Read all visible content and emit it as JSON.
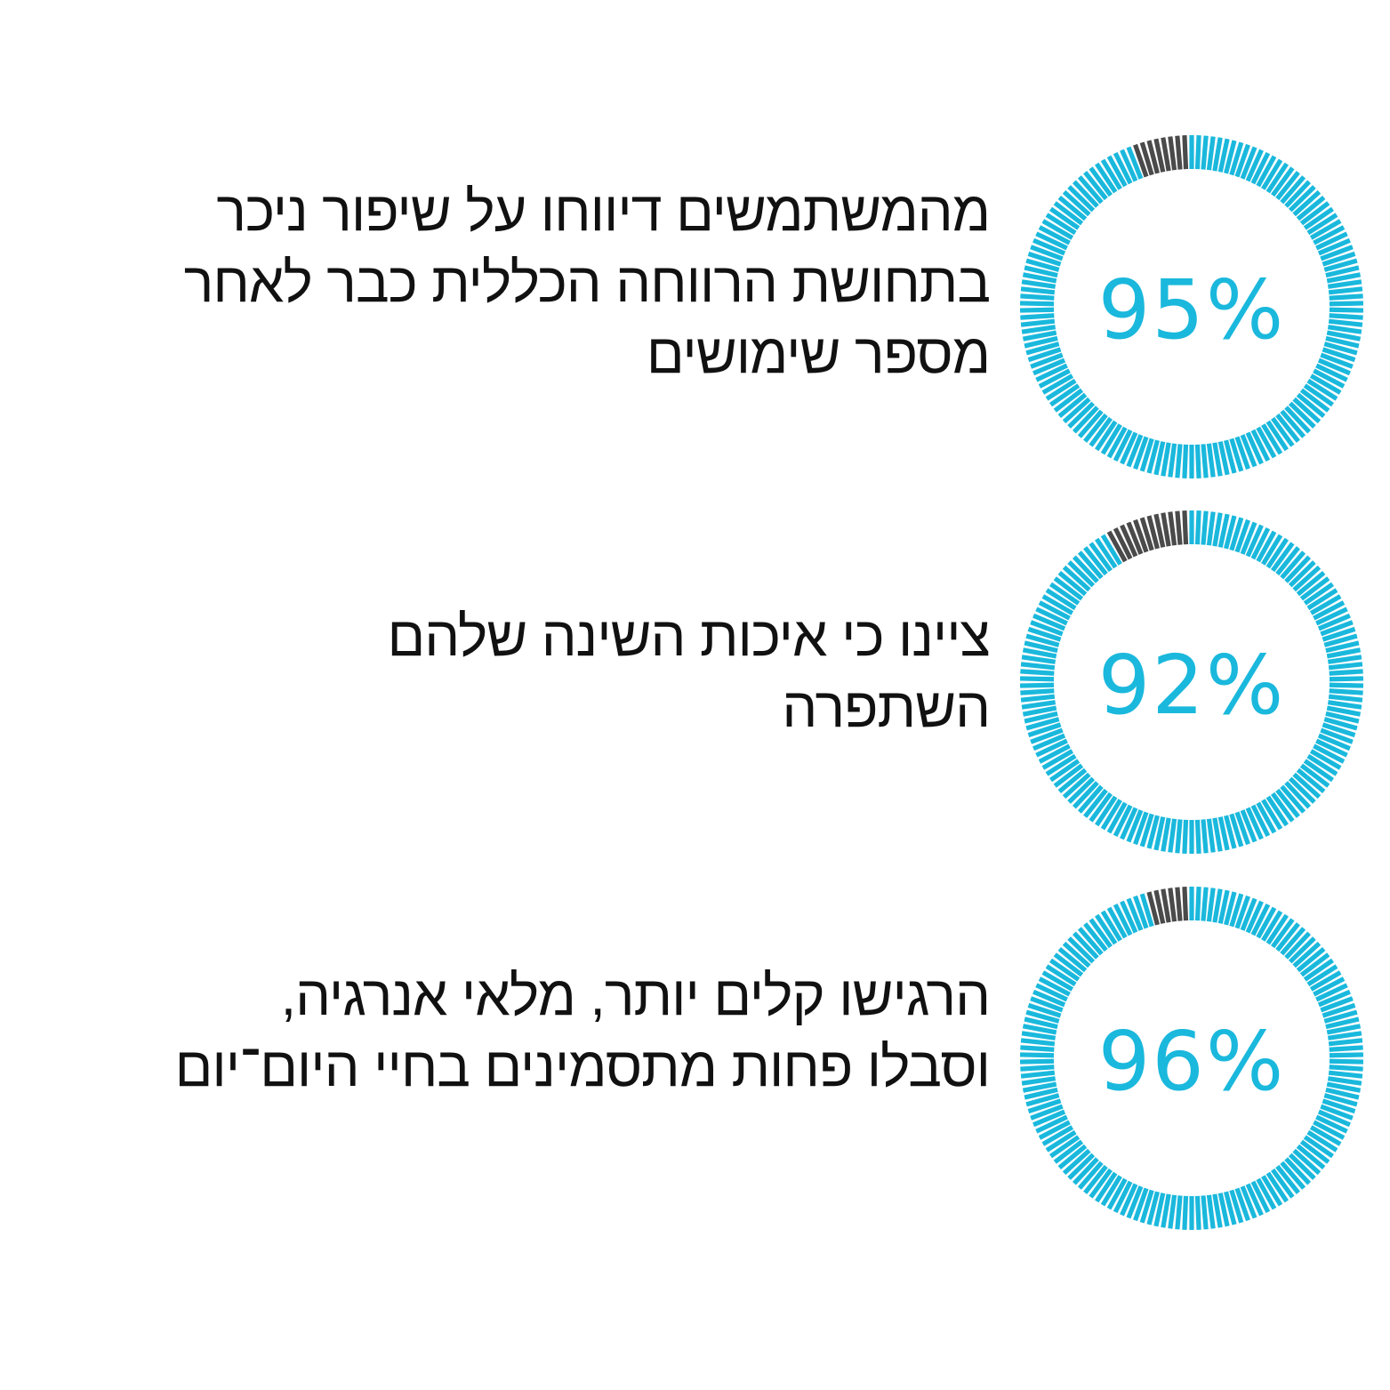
{
  "colors": {
    "filled": "#1ab8dc",
    "remaining": "#4a4a4a",
    "text": "#111111"
  },
  "chart_data": [
    {
      "type": "pie",
      "value": 95,
      "max": 100,
      "label": "95%",
      "text": "מהמשתמשים דיווחו על שיפור ניכר\nבתחושת הרווחה הכללית כבר לאחר\nמספר שימושים"
    },
    {
      "type": "pie",
      "value": 92,
      "max": 100,
      "label": "92%",
      "text": "ציינו כי איכות השינה שלהם\nהשתפרה"
    },
    {
      "type": "pie",
      "value": 96,
      "max": 100,
      "label": "96%",
      "text": "הרגישו קלים יותר, מלאי אנרגיה,\nוסבלו פחות מתסמינים בחיי היום־יום"
    }
  ]
}
